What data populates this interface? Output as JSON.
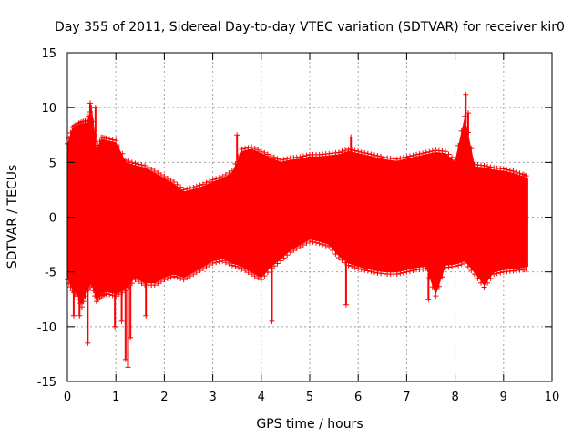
{
  "chart_data": {
    "type": "scatter",
    "title": "Day 355 of 2011, Sidereal Day-to-day VTEC variation (SDTVAR) for receiver kir0",
    "xlabel": "GPS time / hours",
    "ylabel": "SDTVAR / TECUs",
    "xlim": [
      0,
      10
    ],
    "ylim": [
      -15,
      15
    ],
    "xticks": [
      0,
      1,
      2,
      3,
      4,
      5,
      6,
      7,
      8,
      9,
      10
    ],
    "yticks": [
      -15,
      -10,
      -5,
      0,
      5,
      10,
      15
    ],
    "xtick_labels": [
      "0",
      "1",
      "2",
      "3",
      "4",
      "5",
      "6",
      "7",
      "8",
      "9",
      "10"
    ],
    "ytick_labels": [
      "-15",
      "-10",
      "-5",
      "0",
      "5",
      "10",
      "15"
    ],
    "grid": true,
    "marker": "+",
    "color": "#ff0000",
    "series": [
      {
        "name": "SDTVAR",
        "envelope": {
          "x": [
            0.0,
            0.1,
            0.2,
            0.3,
            0.4,
            0.5,
            0.6,
            0.7,
            0.8,
            1.0,
            1.2,
            1.4,
            1.6,
            1.8,
            2.0,
            2.2,
            2.4,
            2.6,
            2.8,
            3.0,
            3.2,
            3.4,
            3.6,
            3.8,
            4.0,
            4.2,
            4.4,
            4.6,
            4.8,
            5.0,
            5.2,
            5.4,
            5.6,
            5.8,
            6.0,
            6.2,
            6.4,
            6.6,
            6.8,
            7.0,
            7.2,
            7.4,
            7.6,
            7.8,
            8.0,
            8.2,
            8.4,
            8.6,
            8.8,
            9.0,
            9.2,
            9.4,
            9.5
          ],
          "upper": [
            6.5,
            8.0,
            8.3,
            8.5,
            8.6,
            9.8,
            6.0,
            7.1,
            7.0,
            6.8,
            5.0,
            4.7,
            4.5,
            4.0,
            3.5,
            3.0,
            2.3,
            2.5,
            2.8,
            3.2,
            3.5,
            4.0,
            6.0,
            6.2,
            5.8,
            5.4,
            5.0,
            5.2,
            5.3,
            5.5,
            5.5,
            5.6,
            5.7,
            6.0,
            5.8,
            5.6,
            5.4,
            5.2,
            5.1,
            5.3,
            5.5,
            5.7,
            5.9,
            5.8,
            5.0,
            9.0,
            4.6,
            4.5,
            4.3,
            4.2,
            4.0,
            3.7,
            3.5
          ],
          "lower": [
            -5.5,
            -6.5,
            -7.0,
            -8.0,
            -6.5,
            -6.0,
            -7.5,
            -7.0,
            -6.8,
            -7.0,
            -6.5,
            -5.5,
            -6.0,
            -6.0,
            -5.5,
            -5.2,
            -5.5,
            -5.0,
            -4.5,
            -4.0,
            -3.8,
            -4.2,
            -4.5,
            -5.0,
            -5.5,
            -4.5,
            -3.8,
            -3.0,
            -2.5,
            -2.0,
            -2.2,
            -2.5,
            -3.5,
            -4.2,
            -4.5,
            -4.7,
            -4.9,
            -5.0,
            -5.0,
            -4.8,
            -4.6,
            -4.5,
            -7.0,
            -4.4,
            -4.3,
            -4.0,
            -5.0,
            -6.2,
            -5.0,
            -4.8,
            -4.7,
            -4.6,
            -4.5
          ]
        },
        "spikes": [
          {
            "x": 0.13,
            "y": -9.0
          },
          {
            "x": 0.25,
            "y": -9.0
          },
          {
            "x": 0.42,
            "y": -11.5
          },
          {
            "x": 0.47,
            "y": 10.4
          },
          {
            "x": 0.58,
            "y": 10.0
          },
          {
            "x": 0.98,
            "y": -10.0
          },
          {
            "x": 1.12,
            "y": -9.5
          },
          {
            "x": 1.2,
            "y": -13.0
          },
          {
            "x": 1.25,
            "y": -13.7
          },
          {
            "x": 1.3,
            "y": -11.0
          },
          {
            "x": 1.62,
            "y": -9.0
          },
          {
            "x": 3.5,
            "y": 7.5
          },
          {
            "x": 4.22,
            "y": -9.5
          },
          {
            "x": 5.75,
            "y": -8.0
          },
          {
            "x": 5.85,
            "y": 7.3
          },
          {
            "x": 7.45,
            "y": -7.5
          },
          {
            "x": 8.22,
            "y": 11.2
          },
          {
            "x": 8.27,
            "y": 9.5
          }
        ]
      }
    ]
  }
}
